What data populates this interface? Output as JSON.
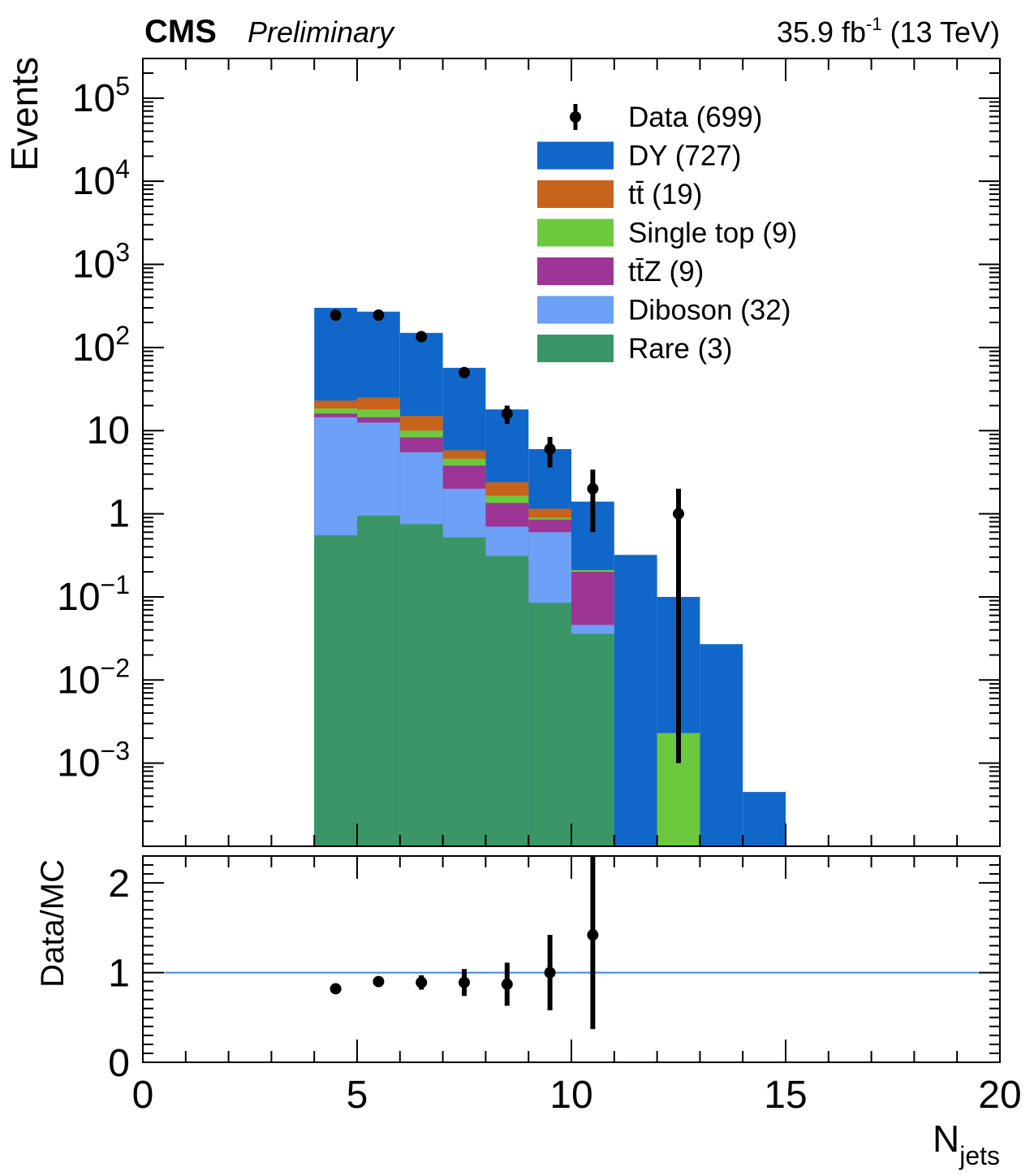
{
  "header": {
    "experiment": "CMS",
    "status": "Preliminary",
    "lumi_value": "35.9 fb",
    "lumi_exp": "-1",
    "energy": "(13 TeV)"
  },
  "colors": {
    "DY": "#1167c9",
    "ttbar": "#c8631c",
    "single_top": "#6cc93e",
    "ttZ": "#9c3596",
    "diboson": "#6da0f7",
    "rare": "#3a9666",
    "ratio_line": "#3a8ae0"
  },
  "chart_data": [
    {
      "type": "stacked-bar-histogram",
      "ylabel": "Events",
      "yscale": "log",
      "xlim": [
        0,
        20
      ],
      "ylim": [
        0.0001,
        300000
      ],
      "y_ticks": [
        {
          "value": 0.001,
          "base": "10",
          "exp": "−3"
        },
        {
          "value": 0.01,
          "base": "10",
          "exp": "−2"
        },
        {
          "value": 0.1,
          "base": "10",
          "exp": "−1"
        },
        {
          "value": 1,
          "base": "1",
          "exp": ""
        },
        {
          "value": 10,
          "base": "10",
          "exp": ""
        },
        {
          "value": 100,
          "base": "10",
          "exp": "2"
        },
        {
          "value": 1000,
          "base": "10",
          "exp": "3"
        },
        {
          "value": 10000,
          "base": "10",
          "exp": "4"
        },
        {
          "value": 100000,
          "base": "10",
          "exp": "5"
        }
      ],
      "bin_edges": [
        4,
        5,
        6,
        7,
        8,
        9,
        10,
        11,
        12,
        13,
        14,
        15
      ],
      "stack_order_bottom_to_top": [
        "rare",
        "diboson",
        "ttZ",
        "single_top",
        "ttbar",
        "DY"
      ],
      "cumulative_top": {
        "rare": [
          0.55,
          0.95,
          0.75,
          0.52,
          0.31,
          0.085,
          0.036,
          null,
          null,
          null,
          null
        ],
        "diboson": [
          14.5,
          12.5,
          5.5,
          2.0,
          0.7,
          0.6,
          0.046,
          null,
          null,
          null,
          null
        ],
        "ttZ": [
          16.0,
          14.5,
          8.3,
          3.8,
          1.35,
          0.85,
          0.2,
          null,
          null,
          null,
          null
        ],
        "single_top": [
          18.5,
          18.0,
          10.0,
          4.6,
          1.65,
          0.9,
          0.21,
          null,
          0.0023,
          null,
          null
        ],
        "ttbar": [
          23.0,
          25.0,
          15.0,
          5.8,
          2.4,
          1.15,
          0.21,
          null,
          0.0023,
          null,
          null
        ],
        "DY": [
          300,
          270,
          150,
          57,
          18,
          6.0,
          1.4,
          0.32,
          0.1,
          0.027,
          0.00045
        ]
      },
      "data_points": [
        {
          "x": 4.5,
          "y": 245,
          "err_lo": 15,
          "err_hi": 15
        },
        {
          "x": 5.5,
          "y": 245,
          "err_lo": 15,
          "err_hi": 15
        },
        {
          "x": 6.5,
          "y": 135,
          "err_lo": 12,
          "err_hi": 12
        },
        {
          "x": 7.5,
          "y": 50,
          "err_lo": 7,
          "err_hi": 7
        },
        {
          "x": 8.5,
          "y": 16,
          "err_lo": 4,
          "err_hi": 4
        },
        {
          "x": 9.5,
          "y": 6,
          "err_lo": 2.4,
          "err_hi": 2.4
        },
        {
          "x": 10.5,
          "y": 2,
          "err_lo": 1.4,
          "err_hi": 1.4
        },
        {
          "x": 12.5,
          "y": 1,
          "err_lo": 0.999,
          "err_hi": 1.0
        }
      ],
      "legend": {
        "placement": "top-right",
        "entries": [
          {
            "key": "data",
            "label": "Data (699)"
          },
          {
            "key": "DY",
            "label": "DY (727)"
          },
          {
            "key": "ttbar",
            "label": "tt̄ (19)"
          },
          {
            "key": "single_top",
            "label": "Single top (9)"
          },
          {
            "key": "ttZ",
            "label": "tt̄Z (9)"
          },
          {
            "key": "diboson",
            "label": "Diboson (32)"
          },
          {
            "key": "rare",
            "label": "Rare (3)"
          }
        ]
      }
    },
    {
      "type": "scatter-errorbar",
      "ylabel": "Data/MC",
      "xlabel_base": "N",
      "xlabel_sub": "jets",
      "xlim": [
        0,
        20
      ],
      "ylim": [
        0,
        2.3
      ],
      "x_ticks": [
        "0",
        "5",
        "10",
        "15",
        "20"
      ],
      "y_ticks": [
        "0",
        "1",
        "2"
      ],
      "reference_line": 1,
      "points": [
        {
          "x": 4.5,
          "y": 0.82,
          "err": 0.05
        },
        {
          "x": 5.5,
          "y": 0.9,
          "err": 0.055
        },
        {
          "x": 6.5,
          "y": 0.89,
          "err": 0.08
        },
        {
          "x": 7.5,
          "y": 0.89,
          "err": 0.15
        },
        {
          "x": 8.5,
          "y": 0.87,
          "err": 0.24
        },
        {
          "x": 9.5,
          "y": 1.0,
          "err": 0.42
        },
        {
          "x": 10.5,
          "y": 1.42,
          "err": 1.05
        }
      ]
    }
  ]
}
